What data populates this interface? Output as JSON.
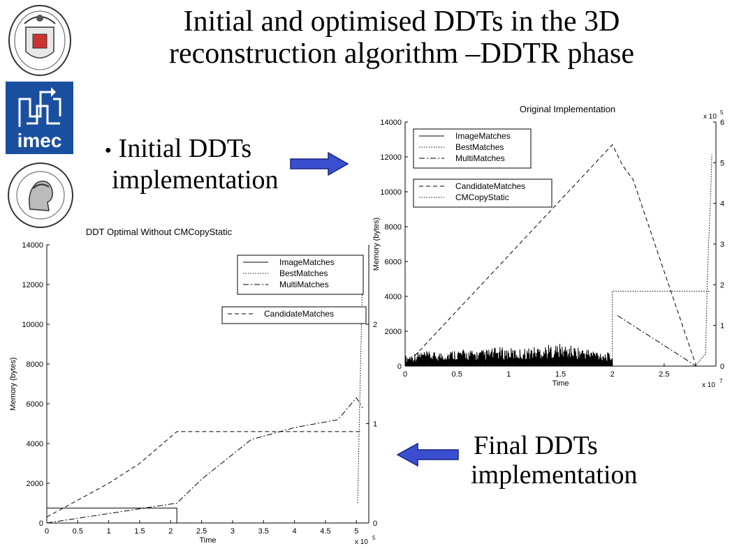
{
  "slide": {
    "title_line1": "Initial and optimised DDTs in the 3D",
    "title_line2": "reconstruction algorithm –DDTR phase",
    "bullet_marker": "●",
    "initial_line1": "Initial DDTs",
    "initial_line2": "implementation",
    "final_line1": "Final  DDTs",
    "final_line2": "implementation",
    "arrow_color": "#3a4ed0",
    "logos": [
      "university-seal-icon",
      "imec-logo",
      "university-emblem-icon"
    ],
    "imec_text": "imec",
    "imec_color": "#1a4fa0"
  },
  "chart_data": [
    {
      "type": "line",
      "title": "Original Implementation",
      "xlabel": "Time",
      "ylabel": "Memory (bytes)",
      "x_exponent": "x 10",
      "x_exponent_power": "7",
      "y2_exponent": "x 10",
      "y2_exponent_power": "5",
      "xlim": [
        0,
        3.0
      ],
      "ylim": [
        0,
        14000
      ],
      "y2lim": [
        0,
        6
      ],
      "xticks": [
        0,
        0.5,
        1,
        1.5,
        2,
        2.5
      ],
      "yticks": [
        0,
        2000,
        4000,
        6000,
        8000,
        10000,
        12000,
        14000
      ],
      "y2ticks": [
        0,
        1,
        2,
        3,
        4,
        5,
        6
      ],
      "legend": [
        "ImageMatches",
        "BestMatches",
        "MultiMatches"
      ],
      "legend2": [
        "CandidateMatches",
        "CMCopyStatic"
      ],
      "series": [
        {
          "name": "CandidateMatches",
          "axis": "left",
          "x": [
            0,
            2.0,
            2.1,
            2.2,
            2.81
          ],
          "y": [
            0,
            12700,
            11500,
            10700,
            0
          ]
        },
        {
          "name": "CMCopyStatic",
          "axis": "left",
          "x": [
            2.0,
            2.0,
            2.95
          ],
          "y": [
            0,
            4300,
            4300
          ]
        },
        {
          "name": "MultiMatches",
          "axis": "left",
          "x": [
            2.05,
            2.81
          ],
          "y": [
            2900,
            0
          ]
        },
        {
          "name": "ImageMatches",
          "axis": "left",
          "x": [
            0.0,
            0.15,
            0.3,
            0.5,
            0.7,
            0.9,
            1.1,
            1.3,
            1.5,
            1.7,
            1.9,
            2.0
          ],
          "y": [
            600,
            900,
            800,
            1000,
            900,
            1100,
            1000,
            1200,
            1300,
            1100,
            900,
            700
          ]
        },
        {
          "name": "BestMatches",
          "axis": "right",
          "x": [
            2.8,
            2.9,
            2.92,
            2.95,
            2.96
          ],
          "y": [
            0,
            0.3,
            2.4,
            4.3,
            5.2
          ]
        }
      ]
    },
    {
      "type": "line",
      "title": "DDT Optimal Without CMCopyStatic",
      "xlabel": "Time",
      "ylabel": "Memory (bytes)",
      "x_exponent": "x 10",
      "x_exponent_power": "5",
      "xlim": [
        0,
        5.2
      ],
      "ylim": [
        0,
        14000
      ],
      "y2lim": [
        0,
        2.8
      ],
      "xticks": [
        0,
        0.5,
        1,
        1.5,
        2,
        2.5,
        3,
        3.5,
        4,
        4.5,
        5
      ],
      "yticks": [
        0,
        2000,
        4000,
        6000,
        8000,
        10000,
        12000,
        14000
      ],
      "y2ticks": [
        0,
        1,
        2
      ],
      "legend": [
        "ImageMatches",
        "BestMatches",
        "MultiMatches"
      ],
      "legend2": [
        "CandidateMatches"
      ],
      "series": [
        {
          "name": "CandidateMatches",
          "axis": "left",
          "x": [
            0,
            1.0,
            1.5,
            2.1,
            5.1
          ],
          "y": [
            300,
            2000,
            3000,
            4600,
            4600
          ]
        },
        {
          "name": "MultiMatches",
          "axis": "left",
          "x": [
            0,
            2.1,
            2.5,
            3.3,
            4.0,
            4.7,
            5.0,
            5.1
          ],
          "y": [
            0,
            1000,
            2200,
            4200,
            4800,
            5200,
            6300,
            5800
          ]
        },
        {
          "name": "ImageMatches",
          "axis": "left",
          "x": [
            0,
            0,
            2.1,
            2.1
          ],
          "y": [
            0,
            750,
            750,
            0
          ]
        },
        {
          "name": "BestMatches",
          "axis": "right",
          "x": [
            5.02,
            5.06,
            5.1
          ],
          "y": [
            0.2,
            1.4,
            2.5
          ]
        }
      ]
    }
  ]
}
